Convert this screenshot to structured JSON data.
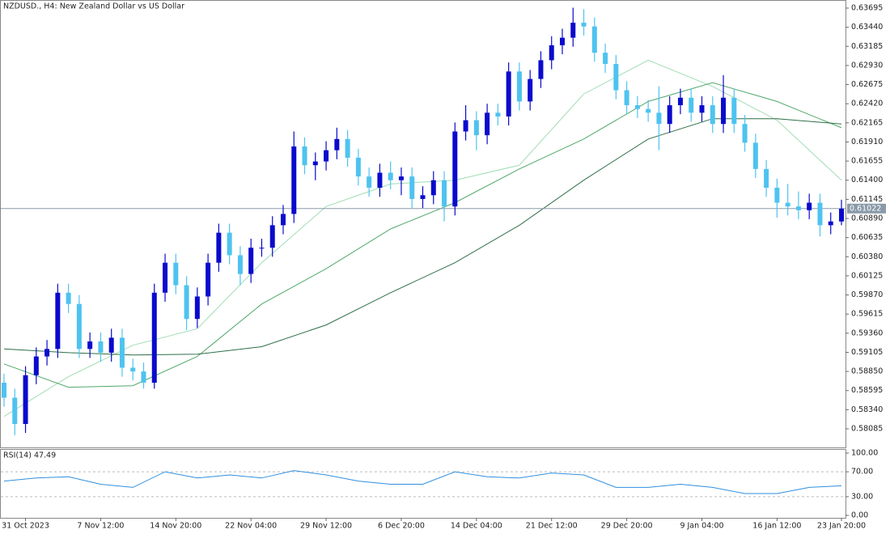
{
  "chart_data": {
    "type": "candlestick",
    "title": "NZDUSD., H4:  New Zealand Dollar vs US Dollar",
    "categories": [
      null,
      null,
      "31 Oct 2023",
      null,
      null,
      null,
      null,
      null,
      null,
      "7 Nov 12:00",
      null,
      null,
      null,
      null,
      null,
      null,
      "14 Nov 20:00",
      null,
      null,
      null,
      null,
      null,
      null,
      "22 Nov 04:00",
      null,
      null,
      null,
      null,
      null,
      null,
      "29 Nov 12:00",
      null,
      null,
      null,
      null,
      null,
      null,
      "6 Dec 20:00",
      null,
      null,
      null,
      null,
      null,
      null,
      "14 Dec 04:00",
      null,
      null,
      null,
      null,
      null,
      null,
      "21 Dec 12:00",
      null,
      null,
      null,
      null,
      null,
      null,
      "29 Dec 20:00",
      null,
      null,
      null,
      null,
      null,
      null,
      "9 Jan 04:00",
      null,
      null,
      null,
      null,
      null,
      null,
      "16 Jan 12:00",
      null,
      null,
      null,
      null,
      null,
      "23 Jan 20:00"
    ],
    "open": [
      0.587,
      0.585,
      0.5815,
      0.588,
      0.5905,
      0.5915,
      0.599,
      0.5975,
      0.5915,
      0.5925,
      0.591,
      0.593,
      0.589,
      0.5885,
      0.587,
      0.599,
      0.603,
      0.6,
      0.5955,
      0.5985,
      0.603,
      0.607,
      0.604,
      0.6015,
      0.605,
      0.605,
      0.608,
      0.6095,
      0.6185,
      0.616,
      0.6165,
      0.618,
      0.6195,
      0.617,
      0.6145,
      0.613,
      0.615,
      0.614,
      0.6145,
      0.6115,
      0.612,
      0.614,
      0.6105,
      0.6205,
      0.622,
      0.62,
      0.623,
      0.6225,
      0.6285,
      0.6245,
      0.6275,
      0.63,
      0.632,
      0.633,
      0.635,
      0.6345,
      0.631,
      0.6295,
      0.626,
      0.624,
      0.6235,
      0.623,
      0.6215,
      0.624,
      0.625,
      0.623,
      0.624,
      0.6215,
      0.625,
      0.6215,
      0.619,
      0.6155,
      0.613,
      0.611,
      0.6105,
      0.61,
      0.611,
      0.608,
      0.6085
    ],
    "high": [
      0.5882,
      0.5862,
      0.5892,
      0.5917,
      0.5927,
      0.6002,
      0.6002,
      0.5987,
      0.5937,
      0.5937,
      0.5942,
      0.5942,
      0.5902,
      0.5897,
      0.6002,
      0.6042,
      0.6042,
      0.6012,
      0.5997,
      0.6042,
      0.6082,
      0.6082,
      0.6052,
      0.6062,
      0.6062,
      0.6092,
      0.6107,
      0.6205,
      0.6197,
      0.6177,
      0.6192,
      0.621,
      0.6207,
      0.6182,
      0.6157,
      0.6162,
      0.6165,
      0.6157,
      0.6157,
      0.6132,
      0.6152,
      0.6152,
      0.6217,
      0.624,
      0.6232,
      0.6242,
      0.6242,
      0.6297,
      0.6297,
      0.6287,
      0.6312,
      0.6332,
      0.6342,
      0.637,
      0.6368,
      0.6357,
      0.6322,
      0.6307,
      0.6272,
      0.6252,
      0.6247,
      0.6265,
      0.6252,
      0.6262,
      0.6262,
      0.6252,
      0.6252,
      0.628,
      0.6262,
      0.6227,
      0.6202,
      0.6167,
      0.6142,
      0.6135,
      0.6125,
      0.6122,
      0.6122,
      0.6097,
      0.6114
    ],
    "low": [
      0.5838,
      0.58,
      0.5803,
      0.5868,
      0.5893,
      0.5903,
      0.5963,
      0.5903,
      0.5903,
      0.5898,
      0.5898,
      0.5878,
      0.5873,
      0.5862,
      0.5862,
      0.5978,
      0.5988,
      0.594,
      0.5943,
      0.5973,
      0.6018,
      0.6028,
      0.6,
      0.6003,
      0.6038,
      0.6038,
      0.6068,
      0.6083,
      0.6148,
      0.614,
      0.6153,
      0.6168,
      0.6158,
      0.6133,
      0.6118,
      0.6118,
      0.6128,
      0.612,
      0.6103,
      0.6103,
      0.6108,
      0.6085,
      0.6093,
      0.6193,
      0.618,
      0.6188,
      0.6213,
      0.6213,
      0.6233,
      0.6233,
      0.6263,
      0.6288,
      0.6308,
      0.6318,
      0.6333,
      0.6298,
      0.6283,
      0.6248,
      0.6228,
      0.6223,
      0.6218,
      0.618,
      0.6203,
      0.6228,
      0.6218,
      0.6218,
      0.6203,
      0.6203,
      0.6203,
      0.6178,
      0.6143,
      0.6118,
      0.609,
      0.6093,
      0.6088,
      0.6088,
      0.6065,
      0.6068,
      0.608
    ],
    "close": [
      0.585,
      0.5815,
      0.588,
      0.5905,
      0.5915,
      0.599,
      0.5975,
      0.5915,
      0.5925,
      0.591,
      0.593,
      0.589,
      0.5885,
      0.587,
      0.599,
      0.603,
      0.6,
      0.5955,
      0.5985,
      0.603,
      0.607,
      0.604,
      0.6015,
      0.605,
      0.605,
      0.608,
      0.6095,
      0.6185,
      0.616,
      0.6165,
      0.618,
      0.6195,
      0.617,
      0.6145,
      0.613,
      0.615,
      0.614,
      0.6145,
      0.6115,
      0.612,
      0.614,
      0.6105,
      0.6205,
      0.622,
      0.62,
      0.623,
      0.6225,
      0.6285,
      0.6245,
      0.6275,
      0.63,
      0.632,
      0.633,
      0.635,
      0.6345,
      0.631,
      0.6295,
      0.626,
      0.624,
      0.6235,
      0.623,
      0.6215,
      0.624,
      0.625,
      0.623,
      0.624,
      0.6215,
      0.625,
      0.6215,
      0.619,
      0.6155,
      0.613,
      0.611,
      0.6105,
      0.61,
      0.611,
      0.608,
      0.6085,
      0.6102
    ],
    "bull_color": "#0a0acd",
    "bear_color": "#4ec3f0",
    "ylim": [
      0.57837,
      0.63803
    ],
    "yticks": [
      0.63695,
      {
        "value": 0.6344,
        "label": "0.63440"
      },
      0.63185,
      {
        "value": 0.6293,
        "label": "0.62930"
      },
      0.62675,
      {
        "value": 0.6242,
        "label": "0.62420"
      },
      0.62165,
      {
        "value": 0.6191,
        "label": "0.61910"
      },
      0.61655,
      {
        "value": 0.614,
        "label": "0.61400"
      },
      0.61145,
      {
        "value": 0.6089,
        "label": "0.60890"
      },
      0.60635,
      {
        "value": 0.6038,
        "label": "0.60380"
      },
      0.60125,
      {
        "value": 0.5987,
        "label": "0.59870"
      },
      0.59615,
      {
        "value": 0.5936,
        "label": "0.59360"
      },
      0.59105,
      {
        "value": 0.5885,
        "label": "0.58850"
      },
      0.58595,
      {
        "value": 0.5834,
        "label": "0.58340"
      },
      0.58085
    ],
    "last_price": 0.61022,
    "moving_averages": {
      "x": [
        0,
        6,
        12,
        18,
        24,
        30,
        36,
        42,
        48,
        54,
        60,
        66,
        72,
        78
      ],
      "series": [
        {
          "color": "#9fdcb4",
          "values": [
            0.5825,
            0.5878,
            0.592,
            0.5942,
            0.603,
            0.6105,
            0.6135,
            0.614,
            0.616,
            0.6255,
            0.63,
            0.6265,
            0.622,
            0.614
          ]
        },
        {
          "color": "#4fa86a",
          "values": [
            0.5895,
            0.5864,
            0.5866,
            0.5905,
            0.5975,
            0.6022,
            0.6075,
            0.611,
            0.6155,
            0.6195,
            0.6245,
            0.627,
            0.6245,
            0.621
          ]
        },
        {
          "color": "#2e6e48",
          "values": [
            0.5915,
            0.591,
            0.5907,
            0.5908,
            0.5918,
            0.5947,
            0.599,
            0.603,
            0.608,
            0.614,
            0.6195,
            0.6222,
            0.6222,
            0.6215
          ]
        }
      ]
    },
    "rsi": {
      "label": "RSI(14) 47.49",
      "color": "#2f8fe0",
      "x": [
        0,
        3,
        6,
        9,
        12,
        15,
        18,
        21,
        24,
        27,
        30,
        33,
        36,
        39,
        42,
        45,
        48,
        51,
        54,
        57,
        60,
        63,
        66,
        69,
        72,
        75,
        78
      ],
      "values": [
        55,
        60,
        62,
        50,
        45,
        70,
        60,
        65,
        60,
        72,
        65,
        55,
        50,
        50,
        70,
        62,
        60,
        68,
        65,
        45,
        45,
        50,
        45,
        35,
        35,
        45,
        47.49
      ],
      "ylim": [
        0,
        100
      ],
      "yticks": [
        {
          "value": 100,
          "label": "100.00"
        },
        {
          "value": 70,
          "label": "70.00"
        },
        {
          "value": 30,
          "label": "30.00"
        },
        {
          "value": 0,
          "label": "0.00"
        }
      ]
    }
  }
}
